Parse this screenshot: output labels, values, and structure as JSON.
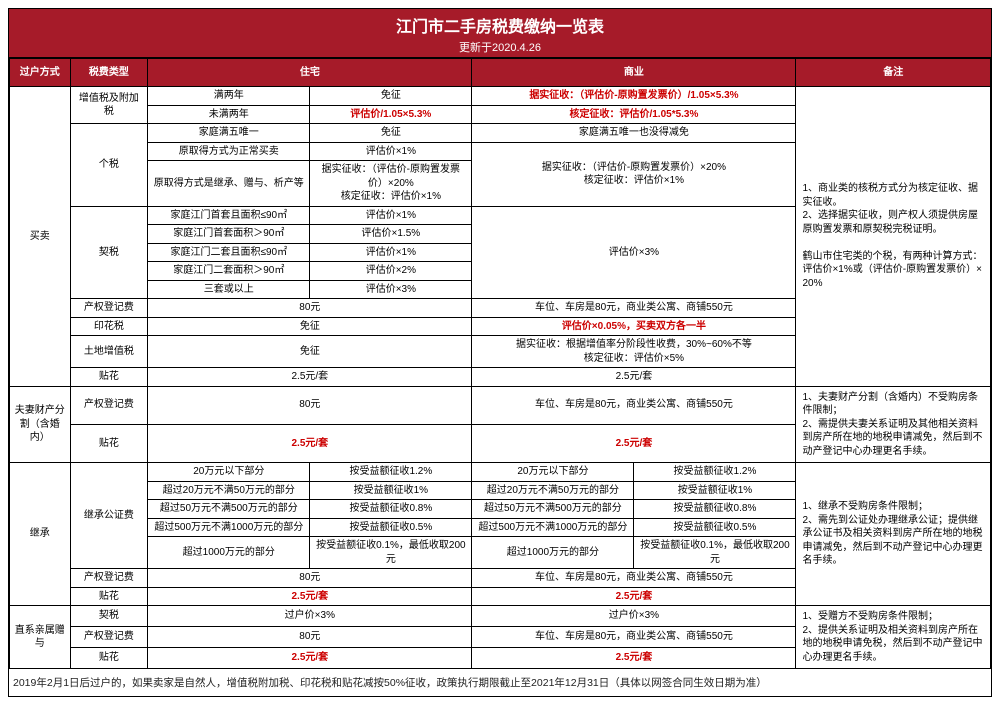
{
  "title": "江门市二手房税费缴纳一览表",
  "subtitle": "更新于2020.4.26",
  "header": {
    "method": "过户方式",
    "tax": "税费类型",
    "res": "住宅",
    "biz": "商业",
    "note": "备注"
  },
  "methods": {
    "buy": "买卖",
    "divorce": "夫妻财产分割（含婚内）",
    "inherit": "继承",
    "gift": "直系亲属赠与"
  },
  "taxes": {
    "vat": "增值税及附加税",
    "pit": "个税",
    "deed": "契税",
    "regfee": "产权登记费",
    "stamp": "印花税",
    "landvat": "土地增值税",
    "sticker": "贴花",
    "notary": "继承公证费"
  },
  "cond": {
    "over2y": "满两年",
    "under2y": "未满两年",
    "only": "家庭满五唯一",
    "normal": "原取得方式为正常买卖",
    "inherit_gift": "原取得方式是继承、赠与、析产等",
    "first_le90": "家庭江门首套且面积≤90㎡",
    "first_gt90": "家庭江门首套面积＞90㎡",
    "second_le90": "家庭江门二套且面积≤90㎡",
    "second_gt90": "家庭江门二套面积＞90㎡",
    "third": "三套或以上",
    "r20": "20万元以下部分",
    "r20_50": "超过20万元不满50万元的部分",
    "r50_500": "超过50万元不满500万元的部分",
    "r500_1000": "超过500万元不满1000万元的部分",
    "r1000": "超过1000万元的部分",
    "deed_gift": "过户价×3%"
  },
  "res_vals": {
    "exempt": "免征",
    "vat_under2y": "评估价/1.05×5.3%",
    "pit1": "评估价×1%",
    "pit_inherit": "据实征收：（评估价-原购置发票价）×20%\n核定征收：评估价×1%",
    "deed1": "评估价×1%",
    "deed15": "评估价×1.5%",
    "deed2": "评估价×2%",
    "deed3": "评估价×3%",
    "reg80": "80元",
    "sticker25": "2.5元/套",
    "n12": "按受益额征收1.2%",
    "n1": "按受益额征收1%",
    "n08": "按受益额征收0.8%",
    "n05": "按受益额征收0.5%",
    "n01": "按受益额征收0.1%，最低收取200元"
  },
  "biz_vals": {
    "vat1": "据实征收：（评估价-原购置发票价）/1.05×5.3%",
    "vat2": "核定征收：评估价/1.05*5.3%",
    "only_no": "家庭满五唯一也没得减免",
    "pit": "据实征收：（评估价-原购置发票价）×20%\n核定征收：评估价×1%",
    "deed3": "评估价×3%",
    "heshan": "鹤山市住宅类的个税，有两种计算方式：评估价×1%或（评估价-原购置发票价）×20%",
    "reg": "车位、车房是80元，商业类公寓、商铺550元",
    "stamp": "评估价×0.05%，买卖双方各一半",
    "landvat": "据实征收：根据增值率分阶段性收费，30%~60%不等\n核定征收：评估价×5%",
    "n01": "按受益额征收0.1%，最低收取200元"
  },
  "notes": {
    "buy": "1、商业类的核税方式分为核定征收、据实征收。\n2、选择据实征收，则产权人须提供房屋原购置发票和原契税完税证明。",
    "divorce": "1、夫妻财产分割（含婚内）不受购房条件限制；\n2、需提供夫妻关系证明及其他相关资料到房产所在地的地税申请减免，然后到不动产登记中心办理更名手续。",
    "inherit": "1、继承不受购房条件限制；\n2、需先到公证处办理继承公证；提供继承公证书及相关资料到房产所在地的地税申请减免，然后到不动产登记中心办理更名手续。",
    "gift": "1、受赠方不受购房条件限制；\n2、提供关系证明及相关资料到房产所在地的地税申请免税，然后到不动产登记中心办理更名手续。"
  },
  "footer": "2019年2月1日后过户的，如果卖家是自然人，增值税附加税、印花税和贴花减按50%征收，政策执行期限截止至2021年12月31日（具体以网签合同生效日期为准）"
}
